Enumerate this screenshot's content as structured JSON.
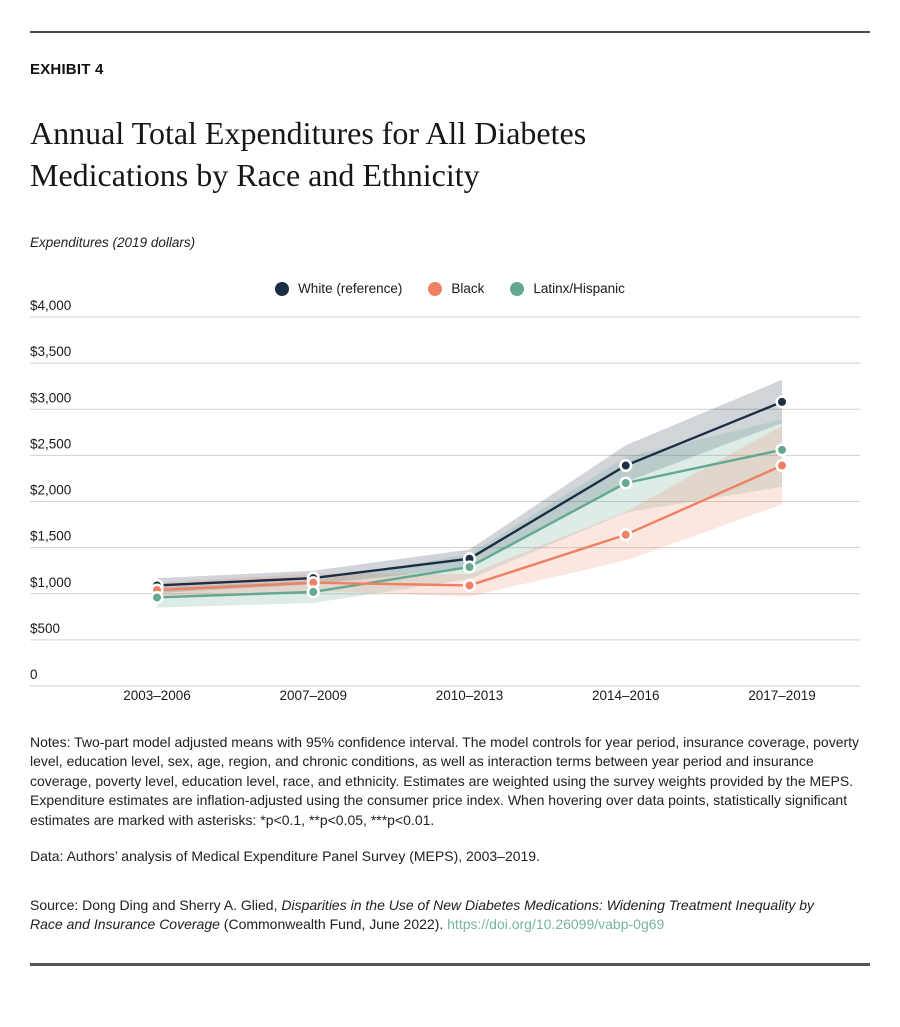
{
  "exhibit_label": "EXHIBIT 4",
  "title": "Annual Total Expenditures for All Diabetes Medications by Race and Ethnicity",
  "subtitle": "Expenditures (2019 dollars)",
  "legend": [
    {
      "label": "White (reference)",
      "color": "#1b2e44"
    },
    {
      "label": "Black",
      "color": "#ee8164"
    },
    {
      "label": "Latinx/Hispanic",
      "color": "#63a890"
    }
  ],
  "chart_data": {
    "type": "line",
    "title": "Annual Total Expenditures for All Diabetes Medications by Race and Ethnicity",
    "ylabel": "Expenditures (2019 dollars)",
    "xlabel": "",
    "categories": [
      "2003–2006",
      "2007–2009",
      "2010–2013",
      "2014–2016",
      "2017–2019"
    ],
    "ylim": [
      0,
      4000
    ],
    "grid": true,
    "legend_position": "top-center",
    "yticks": [
      {
        "value": 4000,
        "label": "$4,000"
      },
      {
        "value": 3500,
        "label": "$3,500"
      },
      {
        "value": 3000,
        "label": "$3,000"
      },
      {
        "value": 2500,
        "label": "$2,500"
      },
      {
        "value": 2000,
        "label": "$2,000"
      },
      {
        "value": 1500,
        "label": "$1,500"
      },
      {
        "value": 1000,
        "label": "$1,000"
      },
      {
        "value": 500,
        "label": "$500"
      },
      {
        "value": 0,
        "label": "0"
      }
    ],
    "series": [
      {
        "name": "White (reference)",
        "color": "#1b2e44",
        "values": [
          1090,
          1170,
          1380,
          2390,
          3080
        ],
        "ci_lower": [
          1010,
          1100,
          1280,
          2210,
          2850
        ],
        "ci_upper": [
          1170,
          1250,
          1480,
          2610,
          3320
        ]
      },
      {
        "name": "Latinx/Hispanic",
        "color": "#63a890",
        "values": [
          960,
          1020,
          1290,
          2200,
          2560
        ],
        "ci_lower": [
          850,
          900,
          1160,
          1880,
          2160
        ],
        "ci_upper": [
          1070,
          1140,
          1430,
          2480,
          2890
        ]
      },
      {
        "name": "Black",
        "color": "#ee8164",
        "values": [
          1040,
          1120,
          1090,
          1640,
          2390
        ],
        "ci_lower": [
          960,
          1030,
          970,
          1360,
          1970
        ],
        "ci_upper": [
          1120,
          1220,
          1210,
          1890,
          2820
        ]
      }
    ],
    "ci_note": "shaded bands are 95% confidence intervals"
  },
  "notes": "Notes: Two-part model adjusted means with 95% confidence interval. The model controls for year period, insurance coverage, poverty level, education level, sex, age, region, and chronic conditions, as well as interaction terms between year period and insurance coverage, poverty level, education level, race, and ethnicity. Estimates are weighted using the survey weights provided by the MEPS. Expenditure estimates are inflation-adjusted using the consumer price index. When hovering over data points, statistically significant estimates are marked with asterisks: *p<0.1, **p<0.05, ***p<0.01.",
  "data_line": "Data: Authors’ analysis of Medical Expenditure Panel Survey (MEPS), 2003–2019.",
  "source": {
    "prefix": "Source: Dong Ding and Sherry A. Glied, ",
    "italic_title": "Disparities in the Use of New Diabetes Medications: Widening Treatment Inequality by Race and Insurance Coverage",
    "suffix": " (Commonwealth Fund, June 2022). ",
    "link_text": "https://doi.org/10.26099/vabp-0g69",
    "link_color": "#76b5a2"
  }
}
